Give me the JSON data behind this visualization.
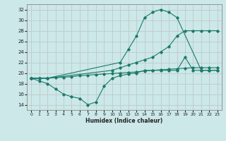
{
  "xlabel": "Humidex (Indice chaleur)",
  "bg_color": "#cce8e8",
  "line_color": "#1a7a6a",
  "grid_color": "#b0d0d0",
  "series": {
    "top": {
      "x": [
        0,
        1,
        2,
        11,
        12,
        13,
        14,
        15,
        16,
        17,
        18,
        21,
        22,
        23
      ],
      "y": [
        19.0,
        19.0,
        19.0,
        22.0,
        24.5,
        27.0,
        30.5,
        31.5,
        32.0,
        31.5,
        30.5,
        20.5,
        20.5,
        20.5
      ]
    },
    "mid": {
      "x": [
        0,
        1,
        2,
        3,
        4,
        5,
        6,
        7,
        8,
        9,
        10,
        11,
        12,
        13,
        14,
        15,
        16,
        17,
        18,
        19,
        20,
        21,
        22,
        23
      ],
      "y": [
        19.0,
        19.0,
        19.0,
        19.1,
        19.2,
        19.3,
        19.5,
        19.6,
        19.7,
        19.8,
        19.9,
        20.0,
        20.1,
        20.2,
        20.4,
        20.5,
        20.6,
        20.7,
        20.8,
        20.9,
        21.0,
        21.0,
        21.0,
        21.0
      ]
    },
    "bot": {
      "x": [
        0,
        1,
        2,
        3,
        4,
        5,
        6,
        7,
        8,
        9,
        10,
        11,
        12,
        13,
        14,
        15,
        16,
        17,
        18,
        19,
        20,
        21,
        22,
        23
      ],
      "y": [
        19.0,
        18.5,
        18.0,
        17.0,
        16.0,
        15.5,
        15.2,
        14.0,
        14.5,
        17.5,
        19.0,
        19.5,
        19.8,
        20.0,
        20.5,
        20.5,
        20.5,
        20.5,
        20.5,
        23.0,
        20.5,
        20.5,
        20.5,
        20.5
      ]
    },
    "upper_diag": {
      "x": [
        0,
        1,
        2,
        10,
        11,
        12,
        13,
        14,
        15,
        16,
        17,
        18,
        19,
        20,
        21,
        22,
        23
      ],
      "y": [
        19.0,
        19.0,
        19.0,
        20.5,
        21.0,
        21.5,
        22.0,
        22.5,
        23.0,
        24.0,
        25.0,
        27.0,
        28.0,
        28.0,
        28.0,
        28.0,
        28.0
      ]
    }
  },
  "xlim": [
    -0.5,
    23.5
  ],
  "ylim": [
    13.0,
    33.0
  ],
  "yticks": [
    14,
    16,
    18,
    20,
    22,
    24,
    26,
    28,
    30,
    32
  ],
  "xticks": [
    0,
    1,
    2,
    3,
    4,
    5,
    6,
    7,
    8,
    9,
    10,
    11,
    12,
    13,
    14,
    15,
    16,
    17,
    18,
    19,
    20,
    21,
    22,
    23
  ]
}
